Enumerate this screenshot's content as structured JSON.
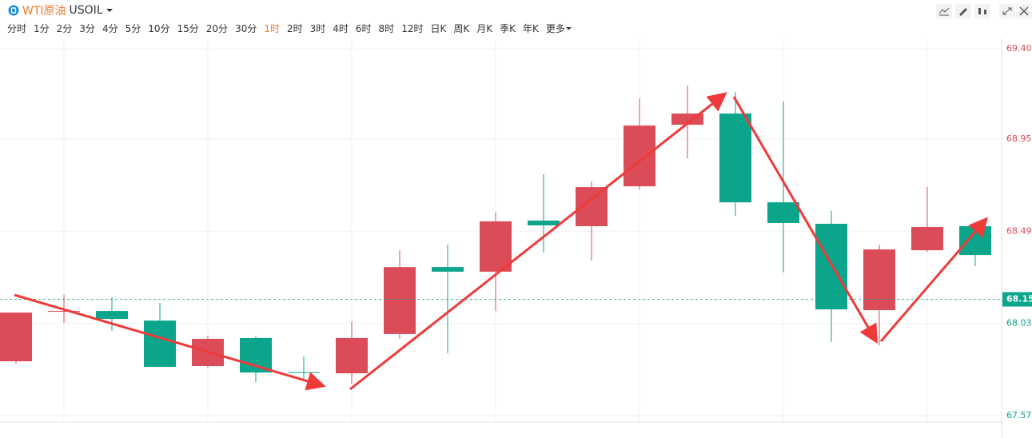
{
  "header": {
    "title": "WTI原油",
    "symbol": "USOIL",
    "periods": [
      "分时",
      "1分",
      "2分",
      "3分",
      "4分",
      "5分",
      "10分",
      "15分",
      "20分",
      "30分",
      "1时",
      "2时",
      "3时",
      "4时",
      "6时",
      "8时",
      "12时",
      "日K",
      "周K",
      "月K",
      "季K",
      "年K"
    ],
    "active_index": 10,
    "more": "更多"
  },
  "chart_data": {
    "type": "candlestick",
    "open": [
      67.841,
      68.09,
      68.092,
      68.044,
      67.817,
      67.957,
      67.787,
      67.781,
      67.977,
      68.311,
      68.288,
      68.543,
      68.515,
      68.714,
      69.021,
      69.077,
      68.634,
      68.527,
      68.096,
      68.395,
      68.515
    ],
    "high": [
      68.084,
      68.172,
      68.16,
      68.132,
      67.969,
      67.965,
      67.865,
      68.04,
      68.395,
      68.423,
      68.583,
      68.774,
      68.738,
      69.153,
      69.217,
      69.185,
      69.137,
      68.591,
      68.423,
      68.71,
      68.515
    ],
    "low": [
      67.829,
      68.032,
      67.993,
      67.813,
      67.809,
      67.737,
      67.753,
      67.729,
      67.953,
      67.881,
      68.092,
      68.383,
      68.343,
      68.698,
      68.854,
      68.567,
      68.284,
      67.937,
      67.921,
      68.387,
      68.315
    ],
    "close": [
      68.084,
      68.092,
      68.052,
      67.813,
      67.953,
      67.785,
      67.785,
      67.957,
      68.311,
      68.288,
      68.539,
      68.519,
      68.71,
      69.017,
      69.077,
      68.634,
      68.531,
      68.1,
      68.399,
      68.511,
      68.371
    ],
    "up_color": "#dc4b58",
    "down_color": "#0ba58b",
    "ylim": [
      67.538,
      69.452
    ],
    "yticks": [
      {
        "value": 69.4,
        "label": "69.400"
      },
      {
        "value": 68.95,
        "label": "68.950"
      },
      {
        "value": 68.49,
        "label": "68.490"
      },
      {
        "value": 68.03,
        "label": "68.030"
      },
      {
        "value": 67.57,
        "label": "67.570"
      }
    ],
    "last_price": {
      "value": 68.15,
      "label": "68.150"
    },
    "grid": true
  }
}
